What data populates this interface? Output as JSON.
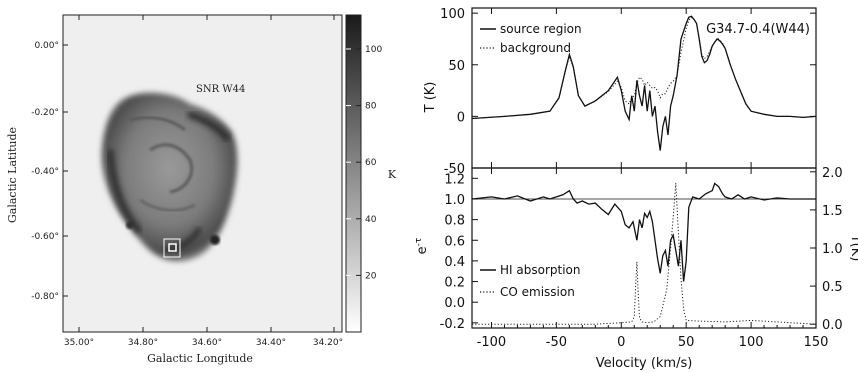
{
  "left_panel": {
    "annotation": "SNR W44",
    "xlabel": "Galactic Longitude",
    "ylabel": "Galactic Latitude",
    "x_ticks": [
      "35.00°",
      "34.80°",
      "34.60°",
      "34.40°",
      "34.20°"
    ],
    "y_ticks": [
      "0.00°",
      "-0.20°",
      "-0.40°",
      "-0.60°",
      "-0.80°"
    ],
    "colorbar": {
      "label": "K",
      "ticks": [
        "20",
        "40",
        "60",
        "80",
        "100"
      ],
      "range": [
        0,
        112
      ]
    }
  },
  "chart_data": [
    {
      "type": "line",
      "title": "G34.7-0.4(W44)",
      "xlabel": "",
      "ylabel": "T (K)",
      "xlim": [
        -115,
        150
      ],
      "ylim": [
        -50,
        105
      ],
      "y_ticks": [
        "-50",
        "0",
        "50",
        "100"
      ],
      "legend": "top-left",
      "series": [
        {
          "name": "source region",
          "style": "solid",
          "x": [
            -115,
            -90,
            -70,
            -55,
            -48,
            -43,
            -40,
            -37,
            -33,
            -28,
            -20,
            -10,
            -3,
            0,
            3,
            6,
            8,
            10,
            12,
            14,
            16,
            18,
            20,
            22,
            24,
            26,
            28,
            30,
            32,
            34,
            36,
            38,
            40,
            43,
            46,
            50,
            52,
            54,
            56,
            58,
            60,
            62,
            64,
            66,
            68,
            70,
            72,
            74,
            76,
            78,
            80,
            82,
            84,
            88,
            92,
            96,
            100,
            110,
            120,
            130,
            140,
            150
          ],
          "y": [
            -2,
            0,
            2,
            5,
            18,
            45,
            60,
            48,
            20,
            10,
            15,
            25,
            38,
            25,
            5,
            -3,
            20,
            5,
            35,
            20,
            10,
            30,
            5,
            25,
            0,
            10,
            -15,
            -33,
            -10,
            0,
            -18,
            10,
            20,
            40,
            75,
            90,
            96,
            97,
            94,
            90,
            75,
            58,
            52,
            54,
            60,
            68,
            72,
            75,
            73,
            70,
            66,
            58,
            50,
            36,
            24,
            12,
            5,
            2,
            0,
            0,
            -1,
            0
          ]
        },
        {
          "name": "background",
          "style": "dotted",
          "x": [
            -115,
            -90,
            -70,
            -55,
            -48,
            -43,
            -40,
            -37,
            -33,
            -28,
            -20,
            -10,
            -3,
            0,
            3,
            6,
            8,
            10,
            12,
            14,
            16,
            18,
            20,
            22,
            24,
            26,
            28,
            30,
            32,
            34,
            36,
            38,
            40,
            43,
            46,
            50,
            52,
            54,
            56,
            58,
            60,
            62,
            64,
            66,
            68,
            70,
            72,
            74,
            76,
            78,
            80,
            82,
            84,
            88,
            92,
            96,
            100,
            110,
            120,
            130,
            140,
            150
          ],
          "y": [
            -2,
            0,
            2,
            5,
            18,
            44,
            58,
            47,
            20,
            10,
            15,
            24,
            34,
            28,
            15,
            12,
            18,
            20,
            32,
            38,
            36,
            30,
            33,
            30,
            27,
            28,
            25,
            18,
            22,
            22,
            28,
            32,
            34,
            40,
            62,
            85,
            93,
            96,
            94,
            90,
            76,
            60,
            56,
            58,
            63,
            68,
            72,
            76,
            74,
            71,
            66,
            58,
            50,
            36,
            24,
            12,
            5,
            2,
            0,
            0,
            -1,
            0
          ]
        }
      ]
    },
    {
      "type": "line",
      "xlabel": "Velocity (km/s)",
      "ylabel": "e^-τ",
      "y2label": "T(K)",
      "xlim": [
        -115,
        150
      ],
      "ylim": [
        -0.25,
        1.3
      ],
      "y2lim": [
        -0.05,
        2.05
      ],
      "x_ticks": [
        "-100",
        "-50",
        "0",
        "50",
        "100",
        "150"
      ],
      "y_ticks": [
        "-0.2",
        "0.0",
        "0.2",
        "0.4",
        "0.6",
        "0.8",
        "1.0",
        "1.2"
      ],
      "y2_ticks": [
        "0.0",
        "0.5",
        "1.0",
        "1.5",
        "2.0"
      ],
      "reference_line": 1.0,
      "legend": "bottom-left",
      "series": [
        {
          "name": "HI absorption",
          "style": "solid",
          "axis": "left",
          "x": [
            -115,
            -100,
            -90,
            -80,
            -70,
            -60,
            -55,
            -50,
            -45,
            -40,
            -37,
            -34,
            -30,
            -25,
            -20,
            -15,
            -10,
            -5,
            0,
            3,
            6,
            9,
            12,
            14,
            16,
            18,
            20,
            22,
            24,
            26,
            28,
            30,
            32,
            34,
            36,
            38,
            40,
            42,
            44,
            46,
            48,
            50,
            52,
            55,
            60,
            65,
            70,
            72,
            75,
            78,
            80,
            85,
            90,
            95,
            100,
            110,
            120,
            130,
            140,
            150
          ],
          "y": [
            1.0,
            1.02,
            1.0,
            1.03,
            0.98,
            1.02,
            1.0,
            1.02,
            1.04,
            1.08,
            1.0,
            0.96,
            0.98,
            0.95,
            0.96,
            0.9,
            0.85,
            0.95,
            0.88,
            0.75,
            0.72,
            0.78,
            0.6,
            0.8,
            0.72,
            0.86,
            0.82,
            0.88,
            0.78,
            0.6,
            0.42,
            0.28,
            0.45,
            0.5,
            0.35,
            0.6,
            0.65,
            0.5,
            0.35,
            0.6,
            0.2,
            0.4,
            0.92,
            1.02,
            1.0,
            1.05,
            1.08,
            1.15,
            1.12,
            1.05,
            1.02,
            1.0,
            1.04,
            1.0,
            1.02,
            0.99,
            1.01,
            1.0,
            1.0,
            1.0
          ]
        },
        {
          "name": "CO emission",
          "style": "dotted",
          "axis": "right",
          "x": [
            -115,
            -20,
            0,
            8,
            10,
            11,
            12,
            13,
            14,
            16,
            20,
            25,
            30,
            35,
            38,
            40,
            42,
            44,
            46,
            48,
            50,
            60,
            80,
            100,
            130,
            150
          ],
          "y": [
            0.0,
            0.0,
            0.02,
            0.03,
            0.1,
            0.5,
            0.82,
            0.4,
            0.08,
            0.03,
            0.02,
            0.03,
            0.1,
            0.45,
            1.0,
            1.4,
            1.85,
            1.2,
            0.6,
            0.2,
            0.05,
            0.04,
            0.03,
            0.05,
            0.02,
            0.0
          ]
        }
      ]
    }
  ]
}
